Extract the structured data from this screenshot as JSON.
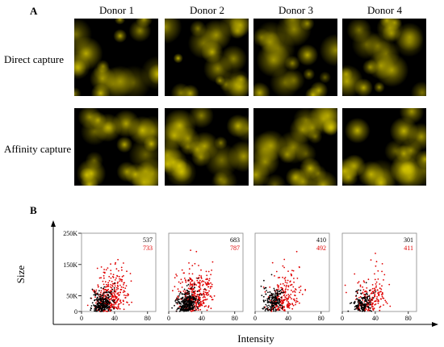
{
  "panel_a": {
    "label": "A",
    "donors": [
      "Donor 1",
      "Donor 2",
      "Donor 3",
      "Donor 4"
    ],
    "rows": [
      "Direct capture",
      "Affinity capture"
    ],
    "particle_color": "#d8c800"
  },
  "panel_b": {
    "label": "B"
  },
  "chart_data": {
    "type": "scatter",
    "xlabel": "Intensity",
    "ylabel": "Size",
    "xticks": [
      "0",
      "40",
      "80"
    ],
    "yticks": [
      "0",
      "50K",
      "150K",
      "250K"
    ],
    "xlim": [
      0,
      90
    ],
    "ylim": [
      0,
      250000
    ],
    "series_colors": {
      "black": "#000000",
      "red": "#e00000"
    },
    "plots": [
      {
        "donor": "Donor 1",
        "counts": [
          "537",
          "733"
        ],
        "black_center": [
          25,
          20000
        ],
        "red_center": [
          35,
          40000
        ],
        "black_count": 537,
        "red_count": 733
      },
      {
        "donor": "Donor 2",
        "counts": [
          "683",
          "787"
        ],
        "black_center": [
          22,
          20000
        ],
        "red_center": [
          32,
          45000
        ],
        "black_count": 683,
        "red_count": 787
      },
      {
        "donor": "Donor 3",
        "counts": [
          "410",
          "492"
        ],
        "black_center": [
          22,
          30000
        ],
        "red_center": [
          34,
          35000
        ],
        "black_count": 410,
        "red_count": 492
      },
      {
        "donor": "Donor 4",
        "counts": [
          "301",
          "411"
        ],
        "black_center": [
          24,
          25000
        ],
        "red_center": [
          34,
          30000
        ],
        "black_count": 301,
        "red_count": 411
      }
    ]
  }
}
